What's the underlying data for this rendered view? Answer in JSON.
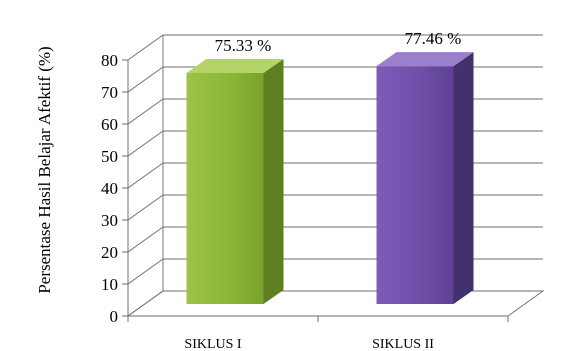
{
  "chart_data": {
    "type": "bar",
    "title": "",
    "categories": [
      "SIKLUS I",
      "SIKLUS II"
    ],
    "series": [
      {
        "values": [
          75.33,
          77.46
        ]
      }
    ],
    "data_labels": [
      "75.33 %",
      "77.46 %"
    ],
    "ylabel": "Persentase Hasil Belajar Afektif (%)",
    "xlabel": "",
    "ylim": [
      0,
      80
    ],
    "yticks": [
      0,
      10,
      20,
      30,
      40,
      50,
      60,
      70,
      80
    ],
    "grid": true,
    "style": "3d-column",
    "colors": [
      "#8db53a",
      "#7050a8"
    ]
  }
}
